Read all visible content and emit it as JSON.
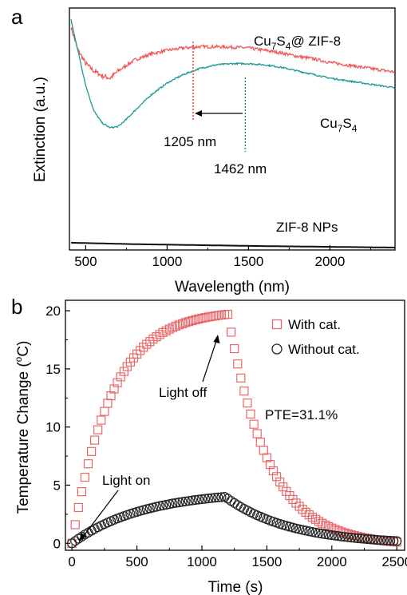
{
  "chart_data": [
    {
      "panel": "a",
      "type": "line",
      "xlabel": "Wavelength (nm)",
      "ylabel": "Extinction (a.u.)",
      "xlim": [
        400,
        2400
      ],
      "ylim": [
        0,
        1
      ],
      "x_ticks": [
        500,
        1000,
        1500,
        2000
      ],
      "y_ticks_shown": false,
      "colors": {
        "cu7s4_zif8": "#f05a5a",
        "cu7s4": "#1a9a93",
        "zif8": "#111111",
        "marker_red": "#e84a4a",
        "marker_teal": "#1a9a93"
      },
      "series": [
        {
          "name": "Cu7S4@ ZIF-8",
          "key": "cu7s4_zif8",
          "x": [
            410,
            450,
            500,
            550,
            600,
            650,
            700,
            800,
            900,
            1000,
            1100,
            1200,
            1300,
            1400,
            1500,
            1600,
            1700,
            1800,
            1900,
            2000,
            2100,
            2200,
            2300,
            2400
          ],
          "y": [
            0.92,
            0.83,
            0.77,
            0.74,
            0.72,
            0.71,
            0.74,
            0.785,
            0.81,
            0.825,
            0.835,
            0.84,
            0.84,
            0.838,
            0.835,
            0.825,
            0.815,
            0.8,
            0.79,
            0.775,
            0.765,
            0.755,
            0.745,
            0.735
          ],
          "noise": 0.008
        },
        {
          "name": "Cu7S4",
          "key": "cu7s4",
          "x": [
            410,
            430,
            460,
            500,
            550,
            600,
            650,
            700,
            750,
            800,
            900,
            1000,
            1100,
            1200,
            1300,
            1400,
            1500,
            1600,
            1700,
            1800,
            1900,
            2000,
            2100,
            2200,
            2300,
            2400
          ],
          "y": [
            0.95,
            0.89,
            0.8,
            0.68,
            0.575,
            0.525,
            0.505,
            0.51,
            0.54,
            0.575,
            0.64,
            0.69,
            0.725,
            0.75,
            0.765,
            0.77,
            0.77,
            0.765,
            0.755,
            0.74,
            0.725,
            0.71,
            0.7,
            0.69,
            0.68,
            0.67
          ],
          "noise": 0.004
        },
        {
          "name": "ZIF-8 NPs",
          "key": "zif8",
          "x": [
            410,
            800,
            1200,
            1600,
            2000,
            2400
          ],
          "y": [
            0.03,
            0.024,
            0.02,
            0.016,
            0.013,
            0.01
          ],
          "noise": 0
        }
      ],
      "annotations": {
        "label_cu7s4_zif8_main": "Cu",
        "label_cu7s4_zif8_sub1": "7",
        "label_cu7s4_zif8_mid": "S",
        "label_cu7s4_zif8_sub2": "4",
        "label_cu7s4_zif8_tail": "@ ZIF-8",
        "label_cu7s4_main": "Cu",
        "label_cu7s4_sub1": "7",
        "label_cu7s4_mid": "S",
        "label_cu7s4_sub2": "4",
        "label_zif8": "ZIF-8 NPs",
        "peak_cu7s4_zif8": "1205 nm",
        "peak_cu7s4": "1462 nm",
        "peak_cu7s4_zif8_x": 1160,
        "peak_cu7s4_x": 1480
      }
    },
    {
      "panel": "b",
      "type": "scatter",
      "xlabel": "Time (s)",
      "ylabel_pre": "Temperature Change (",
      "ylabel_sup": "o",
      "ylabel_post": "C)",
      "xlim": [
        -50,
        2560
      ],
      "ylim": [
        -0.6,
        20.9
      ],
      "x_ticks": [
        0,
        500,
        1000,
        1500,
        2000,
        2500
      ],
      "y_ticks": [
        0,
        5,
        10,
        15,
        20
      ],
      "series": [
        {
          "name": "With cat.",
          "marker": "square",
          "color": "#e8686a",
          "light_off_time": 1200,
          "peak": 19.7,
          "tau_heat": 300,
          "tau_cool": 310,
          "final": -0.2,
          "step": 25,
          "t_end": 2500
        },
        {
          "name": "Without cat.",
          "marker": "circle",
          "color": "#222222",
          "light_off_time": 1180,
          "peak": 4.0,
          "tau_heat": 550,
          "tau_cool": 500,
          "final": -0.1,
          "step": 25,
          "t_end": 2500
        }
      ],
      "annotations": {
        "light_off": "Light off",
        "light_on": "Light on",
        "pte": "PTE=31.1%"
      }
    }
  ]
}
